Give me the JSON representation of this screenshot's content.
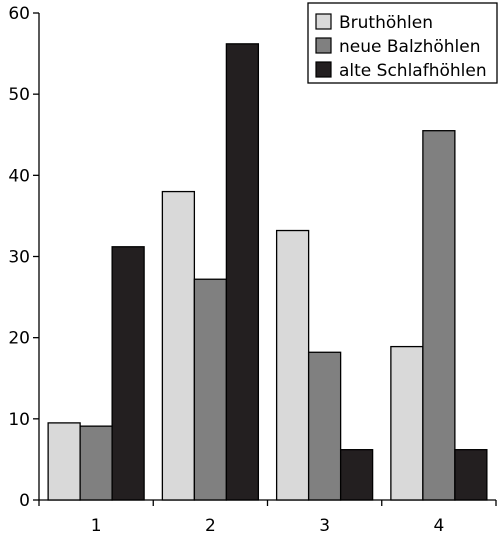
{
  "chart_data": {
    "type": "bar",
    "categories": [
      "1",
      "2",
      "3",
      "4"
    ],
    "ylim": [
      0,
      60
    ],
    "yticks": [
      0,
      10,
      20,
      30,
      40,
      50,
      60
    ],
    "grid": false,
    "legend_position": "top-right",
    "series": [
      {
        "name": "Bruthöhlen",
        "color": "#d9d9d9",
        "values": [
          9.5,
          38.0,
          33.2,
          18.9
        ]
      },
      {
        "name": "neue Balzhöhlen",
        "color": "#808080",
        "values": [
          9.1,
          27.2,
          18.2,
          45.5
        ]
      },
      {
        "name": "alte Schlafhöhlen",
        "color": "#231f20",
        "values": [
          31.2,
          56.2,
          6.2,
          6.2
        ]
      }
    ]
  }
}
